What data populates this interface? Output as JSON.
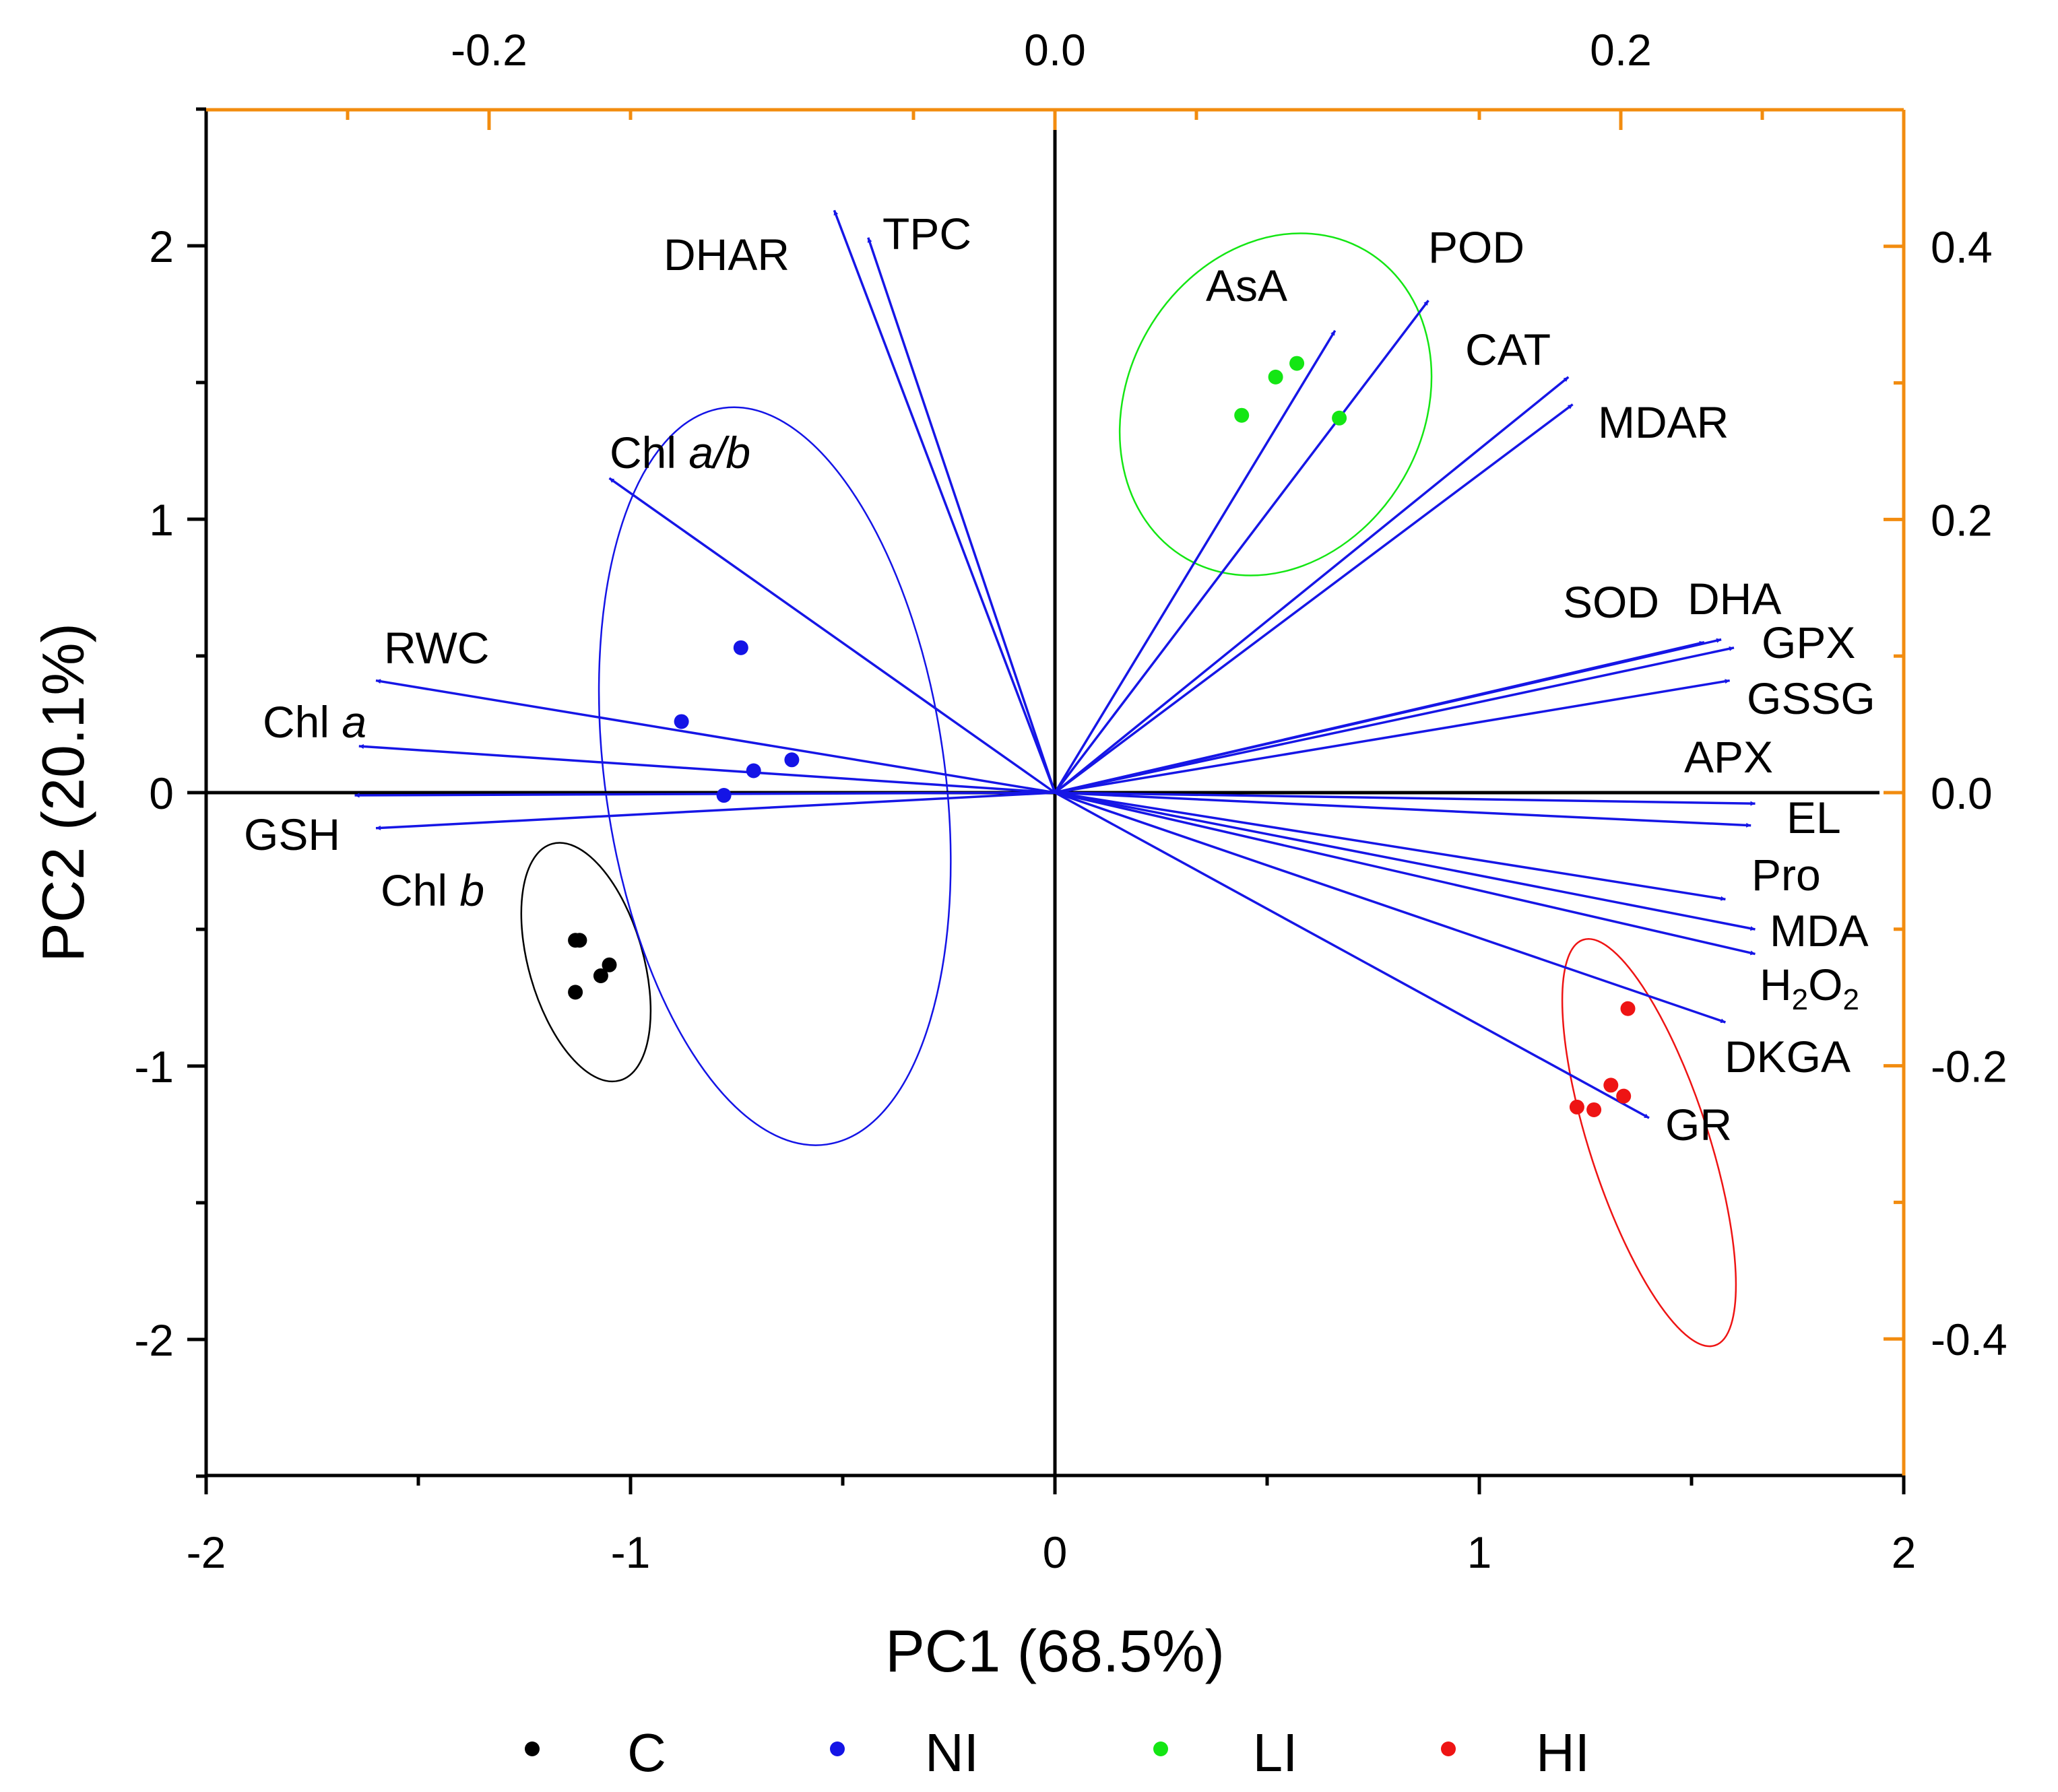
{
  "chart_data": {
    "type": "scatter",
    "subtype": "pca-biplot",
    "title": "",
    "xlabel": "PC1 (68.5%)",
    "ylabel": "PC2 (20.1%)",
    "xlim": [
      -2,
      2
    ],
    "ylim": [
      -2.5,
      2.5
    ],
    "x_ticks": [
      "-2",
      "-1",
      "0",
      "1",
      "2"
    ],
    "y_ticks": [
      "-2",
      "-1",
      "0",
      "1",
      "2"
    ],
    "top_axis": {
      "lim": [
        -0.3,
        0.3
      ],
      "ticks": [
        "-0.2",
        "0.0",
        "0.2"
      ]
    },
    "right_axis": {
      "lim": [
        -0.5,
        0.5
      ],
      "ticks": [
        "0.4",
        "0.2",
        "0.0",
        "-0.2",
        "-0.4"
      ]
    },
    "secondary_axis_color": "#F28C0F",
    "arrow_color": "#1616E6",
    "grid": false,
    "legend_position": "bottom",
    "series": [
      {
        "name": "C",
        "color": "#000000",
        "points": [
          [
            -1.13,
            -0.54
          ],
          [
            -1.12,
            -0.54
          ],
          [
            -1.05,
            -0.63
          ],
          [
            -1.07,
            -0.67
          ],
          [
            -1.13,
            -0.73
          ]
        ],
        "ellipse": {
          "cx": -1.105,
          "cy": -0.62,
          "rx": 0.135,
          "ry": 0.45,
          "angle": 16
        }
      },
      {
        "name": "NI",
        "color": "#1414E6",
        "points": [
          [
            -0.74,
            0.53
          ],
          [
            -0.88,
            0.26
          ],
          [
            -0.62,
            0.12
          ],
          [
            -0.71,
            0.08
          ],
          [
            -0.78,
            -0.01
          ]
        ],
        "ellipse": {
          "cx": -0.66,
          "cy": 0.06,
          "rx": 0.4,
          "ry": 1.36,
          "angle": 8
        }
      },
      {
        "name": "LI",
        "color": "#14E614",
        "points": [
          [
            0.57,
            1.57
          ],
          [
            0.52,
            1.52
          ],
          [
            0.44,
            1.38
          ],
          [
            0.67,
            1.37
          ]
        ],
        "ellipse": {
          "cx": 0.52,
          "cy": 1.42,
          "rx": 0.42,
          "ry": 0.54,
          "angle": 60
        }
      },
      {
        "name": "HI",
        "color": "#EE1414",
        "points": [
          [
            1.35,
            -0.79
          ],
          [
            1.31,
            -1.07
          ],
          [
            1.34,
            -1.11
          ],
          [
            1.23,
            -1.15
          ],
          [
            1.27,
            -1.16
          ]
        ],
        "ellipse": {
          "cx": 1.4,
          "cy": -1.28,
          "rx": 0.14,
          "ry": 0.78,
          "angle": 18
        }
      }
    ],
    "loadings": [
      {
        "label": "DHAR",
        "italic": "",
        "x": -0.52,
        "y": 2.13
      },
      {
        "label": "TPC",
        "italic": "",
        "x": -0.44,
        "y": 2.03
      },
      {
        "label": "Chl ",
        "italic": "a/b",
        "x": -1.05,
        "y": 1.15
      },
      {
        "label": "RWC",
        "italic": "",
        "x": -1.6,
        "y": 0.41
      },
      {
        "label": "Chl ",
        "italic": "a",
        "x": -1.64,
        "y": 0.17
      },
      {
        "label": "GSH",
        "italic": "",
        "x": -1.65,
        "y": -0.01
      },
      {
        "label": "Chl ",
        "italic": "b",
        "x": -1.6,
        "y": -0.13
      },
      {
        "label": "AsA",
        "italic": "",
        "x": 0.66,
        "y": 1.69
      },
      {
        "label": "POD",
        "italic": "",
        "x": 0.88,
        "y": 1.8
      },
      {
        "label": "CAT",
        "italic": "",
        "x": 1.21,
        "y": 1.52
      },
      {
        "label": "MDAR",
        "italic": "",
        "x": 1.22,
        "y": 1.42
      },
      {
        "label": "SOD",
        "italic": "",
        "x": 1.53,
        "y": 0.55
      },
      {
        "label": "DHA",
        "italic": "",
        "x": 1.57,
        "y": 0.56
      },
      {
        "label": "GPX",
        "italic": "",
        "x": 1.6,
        "y": 0.53
      },
      {
        "label": "GSSG",
        "italic": "",
        "x": 1.59,
        "y": 0.41
      },
      {
        "label": "APX",
        "italic": "",
        "x": 1.65,
        "y": -0.04
      },
      {
        "label": "EL",
        "italic": "",
        "x": 1.64,
        "y": -0.12
      },
      {
        "label": "Pro",
        "italic": "",
        "x": 1.58,
        "y": -0.39
      },
      {
        "label": "MDA",
        "italic": "",
        "x": 1.65,
        "y": -0.5
      },
      {
        "label": "H",
        "italic": "",
        "x": 1.65,
        "y": -0.59,
        "chem": {
          "sub1": "2",
          "mid": "O",
          "sub2": "2"
        }
      },
      {
        "label": "DKGA",
        "italic": "",
        "x": 1.58,
        "y": -0.84
      },
      {
        "label": "GR",
        "italic": "",
        "x": 1.4,
        "y": -1.19
      }
    ]
  }
}
